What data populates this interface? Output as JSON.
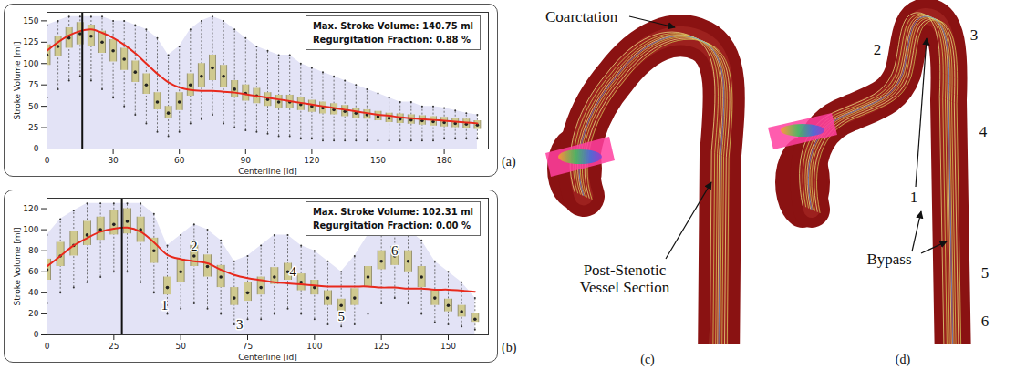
{
  "chart_data": [
    {
      "type": "box",
      "title": "(a)",
      "x_label": "Centerline [id]",
      "y_label": "Stroke Volume [ml]",
      "xlim": [
        0,
        200
      ],
      "xticks": [
        0,
        30,
        60,
        90,
        120,
        150,
        180
      ],
      "ylim": [
        0,
        160
      ],
      "yticks": [
        0,
        25,
        50,
        75,
        100,
        125,
        150
      ],
      "color": "#cfc98f",
      "boxes": {
        "x": [
          0,
          5,
          10,
          15,
          20,
          25,
          30,
          35,
          40,
          45,
          50,
          55,
          60,
          65,
          70,
          75,
          80,
          85,
          90,
          95,
          100,
          105,
          110,
          115,
          120,
          125,
          130,
          135,
          140,
          145,
          150,
          155,
          160,
          165,
          170,
          175,
          180,
          185,
          190,
          195
        ],
        "min": [
          60,
          70,
          80,
          85,
          80,
          70,
          60,
          50,
          40,
          30,
          20,
          15,
          20,
          30,
          35,
          40,
          30,
          25,
          22,
          20,
          18,
          15,
          15,
          12,
          12,
          10,
          10,
          10,
          10,
          10,
          10,
          10,
          10,
          10,
          10,
          10,
          12,
          12,
          12,
          12
        ],
        "q1": [
          98,
          108,
          118,
          122,
          120,
          112,
          102,
          92,
          78,
          64,
          46,
          36,
          45,
          62,
          72,
          80,
          72,
          60,
          56,
          53,
          50,
          47,
          47,
          45,
          43,
          41,
          40,
          38,
          36,
          35,
          33,
          31,
          30,
          29,
          28,
          27,
          26,
          25,
          24,
          23
        ],
        "median": [
          110,
          120,
          130,
          135,
          132,
          125,
          115,
          105,
          90,
          75,
          55,
          42,
          55,
          75,
          85,
          95,
          85,
          70,
          65,
          62,
          58,
          55,
          55,
          52,
          50,
          48,
          46,
          44,
          42,
          40,
          38,
          36,
          35,
          34,
          33,
          32,
          31,
          30,
          29,
          28
        ],
        "q3": [
          122,
          132,
          142,
          148,
          145,
          138,
          128,
          118,
          103,
          88,
          66,
          50,
          66,
          88,
          100,
          110,
          98,
          80,
          75,
          71,
          66,
          63,
          63,
          60,
          57,
          55,
          53,
          51,
          48,
          46,
          44,
          42,
          41,
          40,
          39,
          38,
          37,
          36,
          35,
          33
        ],
        "max": [
          145,
          150,
          155,
          155,
          155,
          155,
          150,
          150,
          145,
          140,
          130,
          110,
          120,
          140,
          150,
          155,
          150,
          140,
          130,
          120,
          115,
          110,
          110,
          100,
          95,
          90,
          85,
          80,
          75,
          70,
          65,
          60,
          55,
          55,
          50,
          50,
          48,
          45,
          42,
          40
        ]
      },
      "line": {
        "color": "#e8291c",
        "values": [
          115,
          125,
          133,
          138,
          140,
          136,
          130,
          122,
          112,
          100,
          88,
          78,
          72,
          69,
          68,
          68,
          67,
          66,
          64,
          62,
          60,
          58,
          56,
          54,
          52,
          50,
          48,
          46,
          44,
          42,
          40,
          39,
          37,
          36,
          35,
          34,
          33,
          32,
          31,
          30
        ]
      },
      "highlight_x": 16,
      "annotations": [
        "Max. Stroke Volume: 140.75 ml",
        "Regurgitation Fraction: 0.88 %"
      ]
    },
    {
      "type": "box",
      "title": "(b)",
      "x_label": "Centerline [id]",
      "y_label": "Stroke Volume [ml]",
      "xlim": [
        0,
        165
      ],
      "xticks": [
        0,
        25,
        50,
        75,
        100,
        125,
        150
      ],
      "ylim": [
        0,
        130
      ],
      "yticks": [
        0,
        20,
        40,
        60,
        80,
        100,
        120
      ],
      "color": "#cfc98f",
      "boxes": {
        "x": [
          0,
          5,
          10,
          15,
          20,
          25,
          30,
          35,
          40,
          45,
          50,
          55,
          60,
          65,
          70,
          75,
          80,
          85,
          90,
          95,
          100,
          105,
          110,
          115,
          120,
          125,
          130,
          135,
          140,
          145,
          150,
          155,
          160
        ],
        "min": [
          30,
          40,
          45,
          50,
          55,
          60,
          60,
          50,
          40,
          20,
          25,
          30,
          25,
          20,
          10,
          15,
          15,
          20,
          25,
          20,
          15,
          10,
          8,
          10,
          20,
          30,
          35,
          30,
          20,
          12,
          10,
          8,
          5
        ],
        "q1": [
          52,
          65,
          75,
          85,
          90,
          95,
          96,
          88,
          68,
          38,
          50,
          65,
          55,
          45,
          28,
          32,
          38,
          48,
          52,
          42,
          38,
          28,
          22,
          28,
          46,
          62,
          66,
          60,
          45,
          28,
          22,
          17,
          12
        ],
        "median": [
          62,
          75,
          85,
          95,
          100,
          105,
          108,
          100,
          80,
          45,
          60,
          75,
          65,
          55,
          35,
          40,
          45,
          55,
          60,
          50,
          45,
          35,
          28,
          35,
          55,
          70,
          75,
          70,
          55,
          35,
          28,
          22,
          15
        ],
        "q3": [
          72,
          88,
          98,
          108,
          112,
          118,
          120,
          112,
          92,
          55,
          72,
          85,
          76,
          66,
          45,
          50,
          55,
          64,
          68,
          58,
          52,
          42,
          34,
          44,
          65,
          80,
          84,
          80,
          65,
          42,
          34,
          28,
          20
        ],
        "max": [
          95,
          110,
          118,
          125,
          125,
          125,
          125,
          125,
          115,
          85,
          95,
          105,
          100,
          90,
          70,
          75,
          85,
          95,
          95,
          85,
          80,
          70,
          60,
          75,
          95,
          100,
          105,
          100,
          90,
          70,
          60,
          50,
          35
        ]
      },
      "line": {
        "color": "#e8291c",
        "values": [
          65,
          75,
          85,
          92,
          98,
          101,
          102,
          98,
          88,
          76,
          72,
          70,
          68,
          62,
          57,
          54,
          52,
          50,
          49,
          48,
          47,
          46,
          46,
          46,
          46,
          45,
          45,
          44,
          44,
          43,
          43,
          42,
          41
        ]
      },
      "highlight_x": 28,
      "annotations": [
        "Max. Stroke Volume: 102.31 ml",
        "Regurgitation Fraction: 0.00 %"
      ],
      "point_labels": [
        {
          "text": "1",
          "x": 44,
          "y": 28
        },
        {
          "text": "2",
          "x": 55,
          "y": 84
        },
        {
          "text": "3",
          "x": 72,
          "y": 10
        },
        {
          "text": "4",
          "x": 92,
          "y": 60
        },
        {
          "text": "5",
          "x": 110,
          "y": 18
        },
        {
          "text": "6",
          "x": 130,
          "y": 80
        }
      ]
    }
  ],
  "diagrams": [
    {
      "label": "(c)",
      "annotations": [
        "Coarctation",
        "Post-Stenotic Vessel Section"
      ]
    },
    {
      "label": "(d)",
      "annotations": [
        "1",
        "2",
        "3",
        "4",
        "5",
        "6",
        "Bypass"
      ]
    }
  ]
}
